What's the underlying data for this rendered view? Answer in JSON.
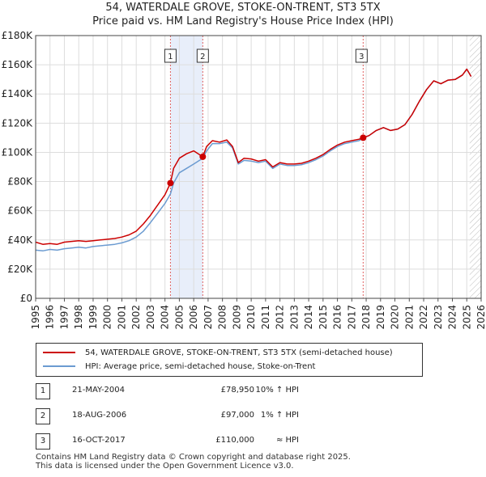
{
  "title": "54, WATERDALE GROVE, STOKE-ON-TRENT, ST3 5TX",
  "subtitle": "Price paid vs. HM Land Registry's House Price Index (HPI)",
  "chart_data": {
    "type": "line",
    "title": "54, WATERDALE GROVE, STOKE-ON-TRENT, ST3 5TX",
    "subtitle": "Price paid vs. HM Land Registry's House Price Index (HPI)",
    "xlabel": "",
    "ylabel": "",
    "xlim": [
      1995,
      2026
    ],
    "ylim": [
      0,
      180000
    ],
    "y_ticks": [
      0,
      20000,
      40000,
      60000,
      80000,
      100000,
      120000,
      140000,
      160000,
      180000
    ],
    "y_tick_labels": [
      "£0",
      "£20K",
      "£40K",
      "£60K",
      "£80K",
      "£100K",
      "£120K",
      "£140K",
      "£160K",
      "£180K"
    ],
    "x_ticks": [
      1995,
      1996,
      1997,
      1998,
      1999,
      2000,
      2001,
      2002,
      2003,
      2004,
      2005,
      2006,
      2007,
      2008,
      2009,
      2010,
      2011,
      2012,
      2013,
      2014,
      2015,
      2016,
      2017,
      2018,
      2019,
      2020,
      2021,
      2022,
      2023,
      2024,
      2025,
      2026
    ],
    "grid": true,
    "shaded_periods": [
      [
        2004.38,
        2006.63
      ]
    ],
    "hatched_region": [
      2025.2,
      2026
    ],
    "series": [
      {
        "name": "54, WATERDALE GROVE, STOKE-ON-TRENT, ST3 5TX (semi-detached house)",
        "color": "#cc0000",
        "x": [
          1995.0,
          1995.5,
          1996.0,
          1996.5,
          1997.0,
          1997.5,
          1998.0,
          1998.5,
          1999.0,
          1999.5,
          2000.0,
          2000.5,
          2001.0,
          2001.5,
          2002.0,
          2002.5,
          2003.0,
          2003.5,
          2004.0,
          2004.38,
          2004.6,
          2005.0,
          2005.5,
          2006.0,
          2006.63,
          2006.9,
          2007.3,
          2007.8,
          2008.3,
          2008.7,
          2009.1,
          2009.5,
          2010.0,
          2010.5,
          2011.0,
          2011.5,
          2012.0,
          2012.5,
          2013.0,
          2013.5,
          2014.0,
          2014.5,
          2015.0,
          2015.5,
          2016.0,
          2016.5,
          2017.0,
          2017.5,
          2017.79,
          2018.2,
          2018.7,
          2019.2,
          2019.7,
          2020.2,
          2020.7,
          2021.2,
          2021.7,
          2022.2,
          2022.7,
          2023.2,
          2023.7,
          2024.2,
          2024.7,
          2025.0,
          2025.3
        ],
        "values": [
          38500,
          37000,
          37500,
          37000,
          38500,
          39000,
          39500,
          39000,
          39500,
          40000,
          40500,
          41000,
          42000,
          43500,
          46000,
          51000,
          57000,
          64000,
          71000,
          78950,
          89000,
          96000,
          99000,
          101000,
          97000,
          104000,
          108000,
          107000,
          108500,
          104000,
          93000,
          96000,
          95500,
          94000,
          95000,
          90000,
          93000,
          92000,
          92000,
          92500,
          94000,
          96000,
          98500,
          102000,
          105000,
          107000,
          108000,
          109000,
          110000,
          111500,
          115000,
          117000,
          115000,
          116000,
          119000,
          126000,
          135000,
          143000,
          149000,
          147000,
          149500,
          150000,
          153000,
          157000,
          152000
        ]
      },
      {
        "name": "HPI: Average price, semi-detached house, Stoke-on-Trent",
        "color": "#6b9bd1",
        "x": [
          1995.0,
          1995.5,
          1996.0,
          1996.5,
          1997.0,
          1997.5,
          1998.0,
          1998.5,
          1999.0,
          1999.5,
          2000.0,
          2000.5,
          2001.0,
          2001.5,
          2002.0,
          2002.5,
          2003.0,
          2003.5,
          2004.0,
          2004.38,
          2004.6,
          2005.0,
          2005.5,
          2006.0,
          2006.63,
          2006.9,
          2007.3,
          2007.8,
          2008.3,
          2008.7,
          2009.1,
          2009.5,
          2010.0,
          2010.5,
          2011.0,
          2011.5,
          2012.0,
          2012.5,
          2013.0,
          2013.5,
          2014.0,
          2014.5,
          2015.0,
          2015.5,
          2016.0,
          2016.5,
          2017.0,
          2017.5,
          2017.79,
          2018.2,
          2018.7,
          2019.2,
          2019.7,
          2020.2,
          2020.7,
          2021.2,
          2021.7,
          2022.2,
          2022.7,
          2023.2,
          2023.7,
          2024.2,
          2024.7,
          2025.0,
          2025.3
        ],
        "values": [
          33000,
          32500,
          33500,
          33000,
          34000,
          34500,
          35000,
          34500,
          35500,
          36000,
          36500,
          37000,
          38000,
          39500,
          42000,
          46000,
          52000,
          58500,
          65000,
          71500,
          79000,
          86000,
          89000,
          92000,
          96000,
          101000,
          106000,
          106000,
          107000,
          103000,
          92000,
          94500,
          94000,
          93000,
          94000,
          89000,
          92000,
          91000,
          91000,
          91500,
          93000,
          95000,
          97500,
          101000,
          104000,
          106000,
          107000,
          108000,
          110000,
          111500,
          115000,
          117000,
          115000,
          116000,
          119000,
          126000,
          135000,
          143000,
          149000,
          147000,
          149500,
          150000,
          153000,
          157000,
          152000
        ]
      }
    ],
    "sales": [
      {
        "marker": "1",
        "x": 2004.38,
        "price": 78950
      },
      {
        "marker": "2",
        "x": 2006.63,
        "price": 97000
      },
      {
        "marker": "3",
        "x": 2017.79,
        "price": 110000
      }
    ]
  },
  "legend": {
    "property": "54, WATERDALE GROVE, STOKE-ON-TRENT, ST3 5TX (semi-detached house)",
    "hpi": "HPI: Average price, semi-detached house, Stoke-on-Trent"
  },
  "sales_table": [
    {
      "marker": "1",
      "date": "21-MAY-2004",
      "price": "£78,950",
      "hpi": "10% ↑ HPI"
    },
    {
      "marker": "2",
      "date": "18-AUG-2006",
      "price": "£97,000",
      "hpi": "1% ↑ HPI"
    },
    {
      "marker": "3",
      "date": "16-OCT-2017",
      "price": "£110,000",
      "hpi": "≈ HPI"
    }
  ],
  "footer": {
    "line1": "Contains HM Land Registry data © Crown copyright and database right 2025.",
    "line2": "This data is licensed under the Open Government Licence v3.0."
  },
  "colors": {
    "property": "#cc0000",
    "hpi": "#6b9bd1",
    "shade": "#e8eefa",
    "grid": "#dddddd"
  }
}
